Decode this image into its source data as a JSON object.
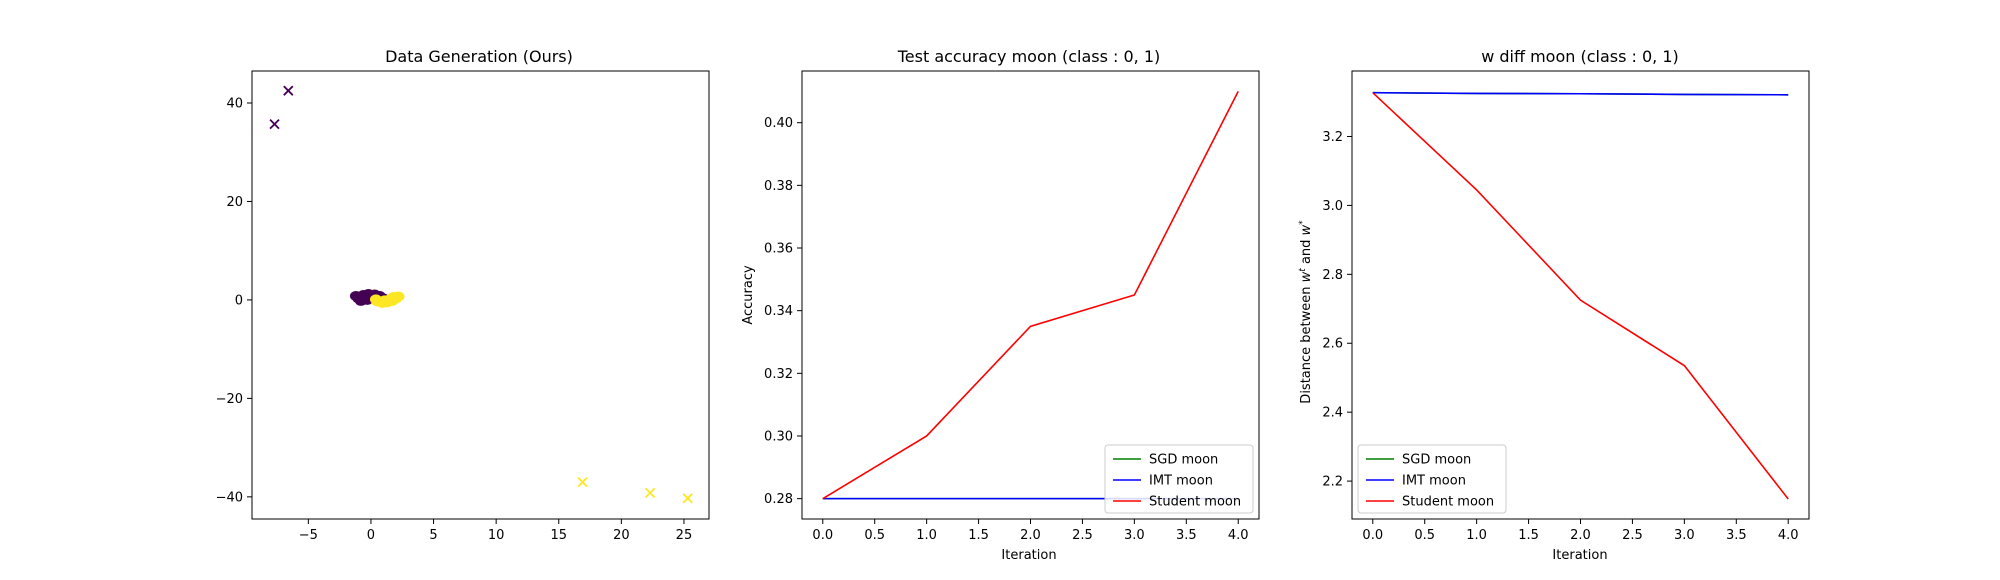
{
  "chart_data": [
    {
      "type": "scatter",
      "title": "Data Generation (Ours)",
      "xlabel": "",
      "ylabel": "",
      "xlim": [
        -9.5,
        27
      ],
      "ylim": [
        -44.5,
        46.5
      ],
      "xticks": [
        -5,
        0,
        5,
        10,
        15,
        20,
        25
      ],
      "yticks": [
        -40,
        -20,
        0,
        20,
        40
      ],
      "colors": {
        "class0": "#440154",
        "class1": "#fde725"
      },
      "marker_points": [
        {
          "x": -6.6,
          "y": 42.5,
          "class": 0
        },
        {
          "x": -7.7,
          "y": 35.7,
          "class": 0
        },
        {
          "x": 16.9,
          "y": -37.0,
          "class": 1
        },
        {
          "x": 22.3,
          "y": -39.2,
          "class": 1
        },
        {
          "x": 25.3,
          "y": -40.3,
          "class": 1
        }
      ],
      "cluster_points": [
        {
          "x": -1.0,
          "y": 0.3,
          "class": 0
        },
        {
          "x": -0.6,
          "y": 1.0,
          "class": 0
        },
        {
          "x": -0.2,
          "y": 1.2,
          "class": 0
        },
        {
          "x": 0.3,
          "y": 1.1,
          "class": 0
        },
        {
          "x": 0.7,
          "y": 0.8,
          "class": 0
        },
        {
          "x": 1.0,
          "y": 0.3,
          "class": 0
        },
        {
          "x": -0.8,
          "y": -0.2,
          "class": 0
        },
        {
          "x": -0.3,
          "y": 0.0,
          "class": 0
        },
        {
          "x": 0.2,
          "y": 0.5,
          "class": 0
        },
        {
          "x": -1.2,
          "y": 0.8,
          "class": 0
        },
        {
          "x": 0.5,
          "y": -0.3,
          "class": 1
        },
        {
          "x": 0.9,
          "y": -0.6,
          "class": 1
        },
        {
          "x": 1.3,
          "y": -0.5,
          "class": 1
        },
        {
          "x": 1.7,
          "y": -0.2,
          "class": 1
        },
        {
          "x": 2.0,
          "y": 0.3,
          "class": 1
        },
        {
          "x": 2.2,
          "y": 0.7,
          "class": 1
        },
        {
          "x": 1.5,
          "y": 0.1,
          "class": 1
        },
        {
          "x": 1.1,
          "y": -0.1,
          "class": 1
        },
        {
          "x": 1.8,
          "y": 0.6,
          "class": 1
        },
        {
          "x": 0.4,
          "y": 0.1,
          "class": 1
        }
      ]
    },
    {
      "type": "line",
      "title": "Test accuracy moon (class : 0, 1)",
      "xlabel": "Iteration",
      "ylabel": "Accuracy",
      "xlim": [
        -0.2,
        4.2
      ],
      "ylim": [
        0.2735,
        0.4165
      ],
      "xticks": [
        0.0,
        0.5,
        1.0,
        1.5,
        2.0,
        2.5,
        3.0,
        3.5,
        4.0
      ],
      "yticks": [
        0.28,
        0.3,
        0.32,
        0.34,
        0.36,
        0.38,
        0.4
      ],
      "x": [
        0,
        1,
        2,
        3,
        4
      ],
      "series": [
        {
          "name": "SGD moon",
          "color": "#008000",
          "values": [
            0.28,
            0.28,
            0.28,
            0.28,
            0.28
          ]
        },
        {
          "name": "IMT moon",
          "color": "#0000ff",
          "values": [
            0.28,
            0.28,
            0.28,
            0.28,
            0.28
          ]
        },
        {
          "name": "Student moon",
          "color": "#ff0000",
          "values": [
            0.28,
            0.3,
            0.335,
            0.345,
            0.41
          ]
        }
      ],
      "legend": "lower right"
    },
    {
      "type": "line",
      "title": "w diff moon (class : 0, 1)",
      "xlabel": "Iteration",
      "ylabel": "Distance between w^t and w^*",
      "xlim": [
        -0.2,
        4.2
      ],
      "ylim": [
        2.09,
        3.39
      ],
      "xticks": [
        0.0,
        0.5,
        1.0,
        1.5,
        2.0,
        2.5,
        3.0,
        3.5,
        4.0
      ],
      "yticks": [
        2.2,
        2.4,
        2.6,
        2.8,
        3.0,
        3.2
      ],
      "x": [
        0,
        1,
        2,
        3,
        4
      ],
      "series": [
        {
          "name": "SGD moon",
          "color": "#008000",
          "values": [
            3.327,
            3.325,
            3.324,
            3.322,
            3.321
          ]
        },
        {
          "name": "IMT moon",
          "color": "#0000ff",
          "values": [
            3.327,
            3.325,
            3.324,
            3.322,
            3.321
          ]
        },
        {
          "name": "Student moon",
          "color": "#ff0000",
          "values": [
            3.327,
            3.045,
            2.725,
            2.535,
            2.148
          ]
        }
      ],
      "legend": "lower left"
    }
  ]
}
